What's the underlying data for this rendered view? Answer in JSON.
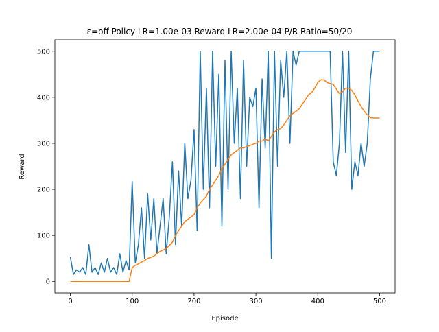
{
  "chart_data": {
    "type": "line",
    "title": "ε=off  Policy LR=1.00e-03  Reward LR=2.00e-04  P/R Ratio=50/20",
    "x_label": "Episode",
    "y_label": "Reward",
    "x": [
      0,
      5,
      10,
      15,
      20,
      25,
      30,
      35,
      40,
      45,
      50,
      55,
      60,
      65,
      70,
      75,
      80,
      85,
      90,
      95,
      100,
      105,
      110,
      115,
      120,
      125,
      130,
      135,
      140,
      145,
      150,
      155,
      160,
      165,
      170,
      175,
      180,
      185,
      190,
      195,
      200,
      205,
      210,
      215,
      220,
      225,
      230,
      235,
      240,
      245,
      250,
      255,
      260,
      265,
      270,
      275,
      280,
      285,
      290,
      295,
      300,
      305,
      310,
      315,
      320,
      325,
      330,
      335,
      340,
      345,
      350,
      355,
      360,
      365,
      370,
      375,
      380,
      385,
      390,
      395,
      400,
      405,
      410,
      415,
      420,
      425,
      430,
      435,
      440,
      445,
      450,
      455,
      460,
      465,
      470,
      475,
      480,
      485,
      490,
      495,
      500
    ],
    "series": [
      {
        "color": "#1f77b4",
        "values": [
          53,
          15,
          25,
          20,
          30,
          15,
          80,
          20,
          30,
          15,
          40,
          20,
          50,
          20,
          30,
          15,
          60,
          20,
          45,
          25,
          217,
          40,
          80,
          160,
          50,
          190,
          90,
          180,
          60,
          120,
          180,
          60,
          140,
          260,
          80,
          240,
          120,
          300,
          180,
          220,
          330,
          110,
          500,
          200,
          420,
          160,
          500,
          250,
          450,
          120,
          480,
          200,
          500,
          300,
          420,
          180,
          480,
          250,
          400,
          380,
          420,
          160,
          440,
          290,
          500,
          50,
          500,
          250,
          480,
          400,
          500,
          300,
          500,
          470,
          500,
          500,
          500,
          500,
          500,
          500,
          500,
          500,
          500,
          500,
          500,
          260,
          230,
          300,
          500,
          280,
          500,
          200,
          260,
          230,
          300,
          250,
          300,
          440,
          500,
          500,
          500
        ]
      },
      {
        "color": "#ff7f0e",
        "values": [
          0,
          0,
          0,
          0,
          0,
          0,
          0,
          0,
          0,
          0,
          0,
          0,
          0,
          0,
          0,
          0,
          0,
          0,
          0,
          0,
          30,
          35,
          38,
          42,
          45,
          50,
          52,
          55,
          60,
          65,
          68,
          72,
          78,
          85,
          100,
          110,
          120,
          130,
          135,
          140,
          145,
          160,
          170,
          178,
          185,
          200,
          210,
          220,
          230,
          245,
          255,
          265,
          275,
          280,
          285,
          290,
          290,
          293,
          295,
          298,
          300,
          305,
          305,
          310,
          305,
          315,
          325,
          330,
          332,
          340,
          350,
          360,
          365,
          370,
          375,
          385,
          395,
          405,
          410,
          420,
          432,
          438,
          438,
          432,
          430,
          428,
          418,
          408,
          412,
          420,
          420,
          415,
          405,
          392,
          380,
          370,
          362,
          356,
          355,
          355,
          355
        ]
      }
    ],
    "xlim": [
      -25,
      525
    ],
    "ylim": [
      -25,
      525
    ],
    "xticks": [
      0,
      100,
      200,
      300,
      400,
      500
    ],
    "yticks": [
      0,
      100,
      200,
      300,
      400,
      500
    ]
  }
}
